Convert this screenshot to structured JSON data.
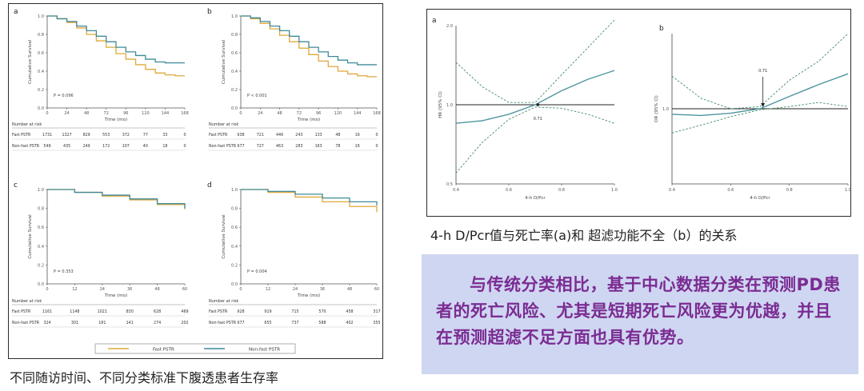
{
  "left_caption": "不同随访时间、不同分类标准下腹透患者生存率",
  "right_caption": "4-h D/Pcr值与死亡率(a)和 超滤功能不全（b）的关系",
  "note": "与传统分类相比，基于中心数据分类在预测PD患者的死亡风险、尤其是短期死亡风险更为优越，并且在预测超滤不足方面也具有优势。",
  "colors": {
    "fast_pstr": "#e0a83a",
    "non_fast_pstr": "#3f8a9a",
    "spline": "#4f95a1",
    "border": "#2b2b2b",
    "note_bg": "#cfd6f1",
    "note_text": "#7b2c93"
  },
  "chart_data": [
    {
      "type": "line",
      "panel": "a",
      "ylabel": "Cumulative Survival",
      "xlabel": "Time (mo)",
      "ylim": [
        0,
        1.0
      ],
      "xlim": [
        0,
        168
      ],
      "xticks": [
        0,
        24,
        48,
        72,
        96,
        120,
        144,
        168
      ],
      "yticks": [
        0,
        0.2,
        0.4,
        0.6,
        0.8,
        1.0
      ],
      "p_value": "P = 0.096",
      "series": [
        {
          "name": "Fast PSTR",
          "x": [
            0,
            12,
            24,
            36,
            48,
            60,
            72,
            84,
            96,
            108,
            120,
            132,
            144,
            156,
            168
          ],
          "y": [
            1.0,
            0.97,
            0.93,
            0.87,
            0.8,
            0.73,
            0.66,
            0.59,
            0.53,
            0.47,
            0.42,
            0.38,
            0.36,
            0.35,
            0.35
          ]
        },
        {
          "name": "Non-fast PSTR",
          "x": [
            0,
            12,
            24,
            36,
            48,
            60,
            72,
            84,
            96,
            108,
            120,
            132,
            144,
            156,
            168
          ],
          "y": [
            1.0,
            0.97,
            0.94,
            0.89,
            0.84,
            0.78,
            0.72,
            0.66,
            0.61,
            0.57,
            0.53,
            0.5,
            0.49,
            0.49,
            0.49
          ]
        }
      ],
      "risk_table": {
        "title": "Number at risk",
        "rows": [
          {
            "label": "Fast PSTR",
            "values": [
              "1731",
              "1327",
              "829",
              "553",
              "372",
              "77",
              "33",
              "0"
            ]
          },
          {
            "label": "Non-fast PSTR",
            "values": [
              "549",
              "435",
              "249",
              "172",
              "107",
              "40",
              "18",
              "0"
            ]
          }
        ]
      }
    },
    {
      "type": "line",
      "panel": "b",
      "ylabel": "Cumulative Survival",
      "xlabel": "Time (mo)",
      "ylim": [
        0,
        1.0
      ],
      "xlim": [
        0,
        168
      ],
      "xticks": [
        0,
        24,
        48,
        72,
        96,
        120,
        144,
        168
      ],
      "yticks": [
        0,
        0.2,
        0.4,
        0.6,
        0.8,
        1.0
      ],
      "p_value": "P < 0.001",
      "series": [
        {
          "name": "Fast PSTR",
          "x": [
            0,
            12,
            24,
            36,
            48,
            60,
            72,
            84,
            96,
            108,
            120,
            132,
            144,
            156,
            168
          ],
          "y": [
            1.0,
            0.97,
            0.92,
            0.86,
            0.79,
            0.72,
            0.65,
            0.58,
            0.51,
            0.45,
            0.4,
            0.37,
            0.35,
            0.34,
            0.34
          ]
        },
        {
          "name": "Non-fast PSTR",
          "x": [
            0,
            12,
            24,
            36,
            48,
            60,
            72,
            84,
            96,
            108,
            120,
            132,
            144,
            156,
            168
          ],
          "y": [
            1.0,
            0.98,
            0.94,
            0.89,
            0.84,
            0.78,
            0.72,
            0.66,
            0.61,
            0.56,
            0.52,
            0.49,
            0.47,
            0.47,
            0.47
          ]
        }
      ],
      "risk_table": {
        "title": "Number at risk",
        "rows": [
          {
            "label": "Fast PSTR",
            "values": [
              "938",
              "721",
              "446",
              "243",
              "133",
              "48",
              "16",
              "0"
            ]
          },
          {
            "label": "Non-fast PSTR",
            "values": [
              "977",
              "727",
              "463",
              "283",
              "163",
              "78",
              "16",
              "0"
            ]
          }
        ]
      }
    },
    {
      "type": "line",
      "panel": "c",
      "ylabel": "Cumulative Survival",
      "xlabel": "Time (mo)",
      "ylim": [
        0,
        1.0
      ],
      "xlim": [
        0,
        60
      ],
      "xticks": [
        0,
        12,
        24,
        36,
        48,
        60
      ],
      "yticks": [
        0,
        0.2,
        0.4,
        0.6,
        0.8,
        1.0
      ],
      "p_value": "P = 0.353",
      "series": [
        {
          "name": "Fast PSTR",
          "x": [
            0,
            12,
            24,
            36,
            48,
            60
          ],
          "y": [
            1.0,
            0.97,
            0.93,
            0.89,
            0.84,
            0.79
          ]
        },
        {
          "name": "Non-fast PSTR",
          "x": [
            0,
            12,
            24,
            36,
            48,
            60
          ],
          "y": [
            1.0,
            0.97,
            0.94,
            0.9,
            0.85,
            0.8
          ]
        }
      ],
      "risk_table": {
        "title": "Number at risk",
        "rows": [
          {
            "label": "Fast PSTR",
            "values": [
              "1161",
              "1148",
              "1021",
              "830",
              "628",
              "469"
            ]
          },
          {
            "label": "Non-fast PSTR",
            "values": [
              "324",
              "301",
              "181",
              "141",
              "274",
              "202"
            ]
          }
        ]
      }
    },
    {
      "type": "line",
      "panel": "d",
      "ylabel": "Cumulative Survival",
      "xlabel": "Time (mo)",
      "ylim": [
        0,
        1.0
      ],
      "xlim": [
        0,
        60
      ],
      "xticks": [
        0,
        12,
        24,
        36,
        48,
        60
      ],
      "yticks": [
        0,
        0.2,
        0.4,
        0.6,
        0.8,
        1.0
      ],
      "p_value": "P = 0.004",
      "series": [
        {
          "name": "Fast PSTR",
          "x": [
            0,
            12,
            24,
            36,
            48,
            60
          ],
          "y": [
            1.0,
            0.97,
            0.92,
            0.87,
            0.82,
            0.76
          ]
        },
        {
          "name": "Non-fast PSTR",
          "x": [
            0,
            12,
            24,
            36,
            48,
            60
          ],
          "y": [
            1.0,
            0.98,
            0.95,
            0.91,
            0.87,
            0.83
          ]
        }
      ],
      "risk_table": {
        "title": "Number at risk",
        "rows": [
          {
            "label": "Fast PSTR",
            "values": [
              "928",
              "919",
              "715",
              "570",
              "458",
              "317"
            ]
          },
          {
            "label": "Non-fast PSTR",
            "values": [
              "977",
              "655",
              "737",
              "588",
              "402",
              "355"
            ]
          }
        ]
      }
    },
    {
      "type": "line",
      "panel": "a",
      "ylabel": "HR (95% CI)",
      "xlabel": "4-h D/Pcr",
      "xlim": [
        0.4,
        1.0
      ],
      "ylim": [
        0.5,
        2.0
      ],
      "xticks": [
        0.4,
        0.6,
        0.8,
        1.0
      ],
      "yticks": [
        0.5,
        1.0,
        2.0
      ],
      "annotation": "0.71",
      "reference_line": 1.0,
      "series": [
        {
          "name": "estimate",
          "x": [
            0.4,
            0.5,
            0.6,
            0.7,
            0.8,
            0.9,
            1.0
          ],
          "y": [
            0.85,
            0.87,
            0.92,
            1.0,
            1.13,
            1.25,
            1.35
          ]
        },
        {
          "name": "lower",
          "x": [
            0.4,
            0.5,
            0.6,
            0.7,
            0.8,
            0.9,
            1.0
          ],
          "y": [
            0.55,
            0.72,
            0.88,
            0.98,
            0.97,
            0.92,
            0.85
          ]
        },
        {
          "name": "upper",
          "x": [
            0.4,
            0.5,
            0.6,
            0.7,
            0.8,
            0.9,
            1.0
          ],
          "y": [
            1.45,
            1.17,
            1.02,
            1.02,
            1.3,
            1.65,
            2.1
          ]
        }
      ]
    },
    {
      "type": "line",
      "panel": "b",
      "ylabel": "OR (95% CI)",
      "xlabel": "4-h D/Pcr",
      "xlim": [
        0.4,
        1.0
      ],
      "ylim": [
        0.5,
        2.0
      ],
      "xticks": [
        0.4,
        0.6,
        0.8,
        1.0
      ],
      "yticks": [
        1.0
      ],
      "annotation": "0.71",
      "reference_line": 1.0,
      "series": [
        {
          "name": "estimate",
          "x": [
            0.4,
            0.5,
            0.6,
            0.7,
            0.8,
            0.9,
            1.0
          ],
          "y": [
            0.95,
            0.94,
            0.96,
            1.0,
            1.12,
            1.25,
            1.38
          ]
        },
        {
          "name": "lower",
          "x": [
            0.4,
            0.5,
            0.6,
            0.7,
            0.8,
            0.9,
            1.0
          ],
          "y": [
            0.8,
            0.86,
            0.93,
            0.99,
            1.02,
            1.06,
            1.02
          ]
        },
        {
          "name": "upper",
          "x": [
            0.4,
            0.5,
            0.6,
            0.7,
            0.8,
            0.9,
            1.0
          ],
          "y": [
            1.35,
            1.1,
            1.0,
            1.02,
            1.3,
            1.55,
            2.0
          ]
        }
      ]
    }
  ]
}
